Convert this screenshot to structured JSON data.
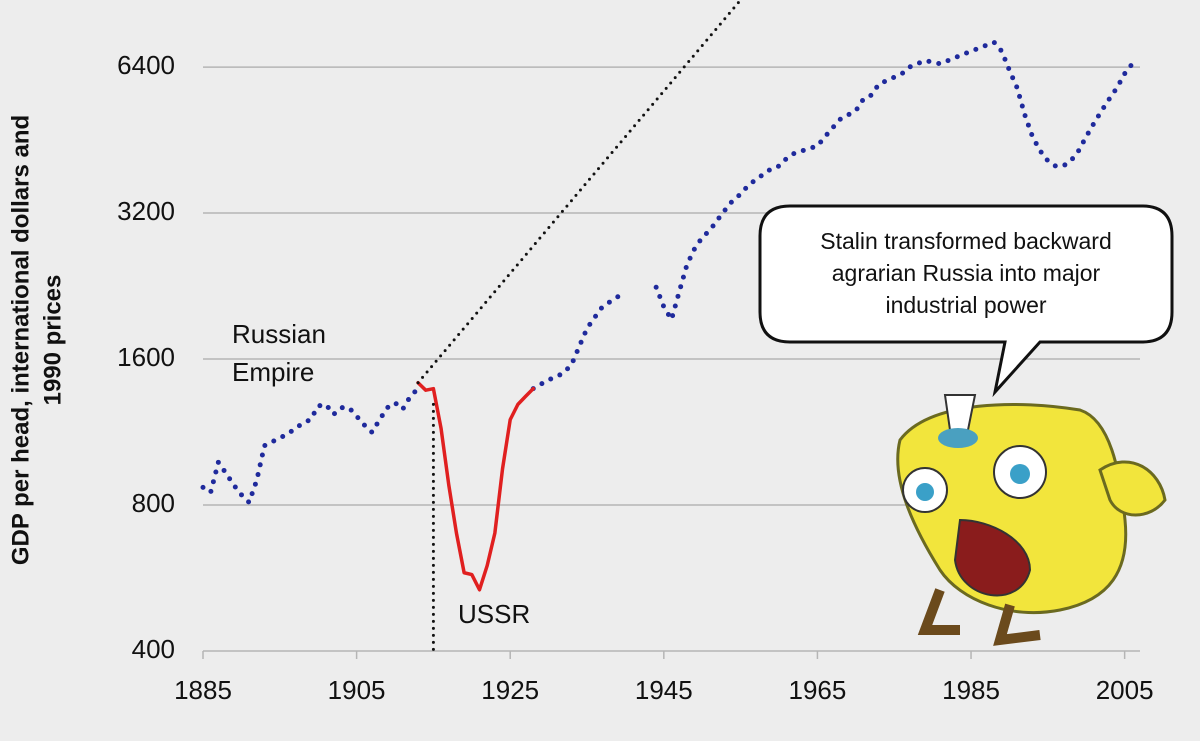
{
  "chart_data": {
    "type": "line",
    "ylabel_lines": [
      "GDP per head, international dollars and",
      "1990 prices"
    ],
    "log_scale_y": true,
    "grid": true,
    "xlim": [
      1885,
      2007
    ],
    "ylim": [
      400,
      8800
    ],
    "xticks": [
      1885,
      1905,
      1925,
      1945,
      1965,
      1985,
      2005
    ],
    "yticks": [
      400,
      800,
      1600,
      3200,
      6400
    ],
    "annotations": [
      {
        "lines": [
          "Russian",
          "Empire"
        ]
      },
      {
        "lines": [
          "USSR"
        ]
      }
    ],
    "speech_bubble": {
      "lines": [
        "Stalin transformed backward",
        "agrarian Russia into major",
        "industrial power"
      ]
    },
    "series": [
      {
        "color": "#1f2a9c",
        "style": "dotted",
        "x": [
          1885,
          1886,
          1887,
          1888,
          1889,
          1890,
          1891,
          1892,
          1893,
          1894,
          1895,
          1896,
          1897,
          1898,
          1899,
          1900,
          1901,
          1902,
          1903,
          1904,
          1905,
          1906,
          1907,
          1908,
          1909,
          1910,
          1911,
          1912,
          1913,
          1914,
          1915,
          1916,
          1917,
          1918,
          1919,
          1920,
          1921,
          1922,
          1923,
          1924,
          1925,
          1926,
          1927,
          1928,
          1929,
          1930,
          1931,
          1932,
          1933,
          1934,
          1935,
          1936,
          1937,
          1938,
          1939,
          1940,
          1941,
          1942,
          1943,
          1944,
          1945,
          1946,
          1947,
          1948,
          1949,
          1950,
          1951,
          1952,
          1953,
          1954,
          1955,
          1956,
          1957,
          1958,
          1959,
          1960,
          1961,
          1962,
          1963,
          1964,
          1965,
          1966,
          1967,
          1968,
          1969,
          1970,
          1971,
          1972,
          1973,
          1974,
          1975,
          1976,
          1977,
          1978,
          1979,
          1980,
          1981,
          1982,
          1983,
          1984,
          1985,
          1986,
          1987,
          1988,
          1989,
          1990,
          1991,
          1992,
          1993,
          1994,
          1995,
          1996,
          1997,
          1998,
          1999,
          2000,
          2001,
          2002,
          2003,
          2004,
          2005,
          2006
        ],
        "values": [
          870,
          850,
          980,
          930,
          880,
          840,
          810,
          900,
          1060,
          1080,
          1100,
          1120,
          1150,
          1180,
          1200,
          1280,
          1290,
          1230,
          1270,
          1270,
          1220,
          1170,
          1130,
          1200,
          1270,
          1300,
          1260,
          1340,
          1390,
          null,
          null,
          null,
          null,
          null,
          null,
          null,
          null,
          null,
          null,
          null,
          null,
          null,
          null,
          1390,
          1420,
          1450,
          1470,
          1500,
          1560,
          1700,
          1850,
          1950,
          2050,
          2100,
          2150,
          2200,
          null,
          null,
          null,
          2250,
          2050,
          1930,
          2200,
          2500,
          2700,
          2850,
          2950,
          3100,
          3250,
          3400,
          3500,
          3650,
          3750,
          3850,
          3950,
          4000,
          4150,
          4250,
          4300,
          4350,
          4400,
          4600,
          4800,
          5000,
          5100,
          5200,
          5500,
          5600,
          5900,
          6000,
          6100,
          6200,
          6400,
          6500,
          6600,
          6550,
          6500,
          6600,
          6700,
          6800,
          6900,
          7000,
          7100,
          7200,
          6900,
          6300,
          5800,
          5100,
          4600,
          4300,
          4100,
          4000,
          4000,
          4100,
          4300,
          4600,
          4900,
          5200,
          5500,
          5800,
          6200,
          6500
        ]
      },
      {
        "color": "#e02020",
        "style": "solid",
        "x": [
          1913,
          1914,
          1915,
          1916,
          1917,
          1918,
          1919,
          1920,
          1921,
          1922,
          1923,
          1924,
          1925,
          1926,
          1927,
          1928
        ],
        "values": [
          1430,
          1380,
          1390,
          1150,
          880,
          700,
          580,
          575,
          535,
          600,
          700,
          950,
          1200,
          1290,
          1340,
          1390
        ]
      },
      {
        "color": "#111111",
        "style": "dotted-thin",
        "x": [
          1913,
          1955
        ],
        "values": [
          1430,
          8800
        ]
      },
      {
        "color": "#111111",
        "style": "dotted-thin",
        "x": [
          1915,
          1915
        ],
        "values": [
          1290,
          400
        ]
      }
    ]
  }
}
